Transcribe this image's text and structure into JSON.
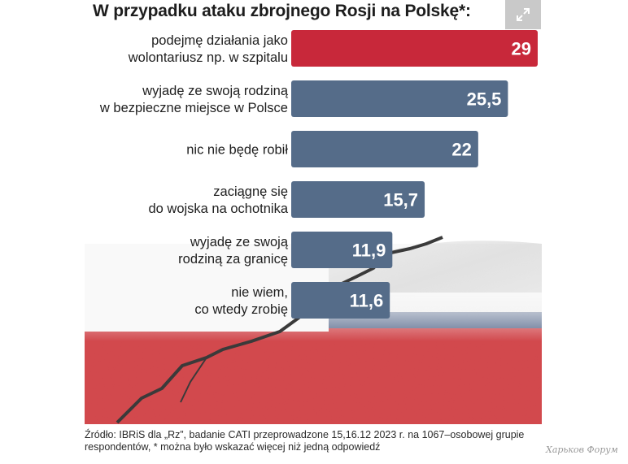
{
  "title": "W przypadku ataku zbrojnego Rosji na Polskę*:",
  "expand_icon": "expand-icon",
  "source": "Źródło: IBRiS dla „Rz”, badanie CATI przeprowadzone 15,16.12 2023 r. na 1067–osobowej grupie respondentów, * można było wskazać więcej niż jedną odpowiedź",
  "watermark": "Харьков Форум",
  "colors": {
    "highlight_bar": "#c8283a",
    "bar": "#556c89",
    "flag_red": "#d33a3f",
    "flag_blue": "#4a5f86"
  },
  "chart_data": {
    "type": "bar",
    "orientation": "horizontal",
    "title": "W przypadku ataku zbrojnego Rosji na Polskę*:",
    "categories": [
      [
        "podejmę działania jako",
        "wolontariusz np. w szpitalu"
      ],
      [
        "wyjadę ze swoją rodziną",
        "w bezpieczne miejsce w Polsce"
      ],
      [
        "nic nie będę robił"
      ],
      [
        "zaciągnę się",
        "do wojska na ochotnika"
      ],
      [
        "wyjadę ze swoją",
        "rodziną za granicę"
      ],
      [
        "nie wiem,",
        "co wtedy zrobię"
      ]
    ],
    "values": [
      29,
      25.5,
      22,
      15.7,
      11.9,
      11.6
    ],
    "labels": [
      "29",
      "25,5",
      "22",
      "15,7",
      "11,9",
      "11,6"
    ],
    "highlight_index": 0,
    "xlim": [
      0,
      29
    ],
    "legend": "none",
    "grid": false
  }
}
